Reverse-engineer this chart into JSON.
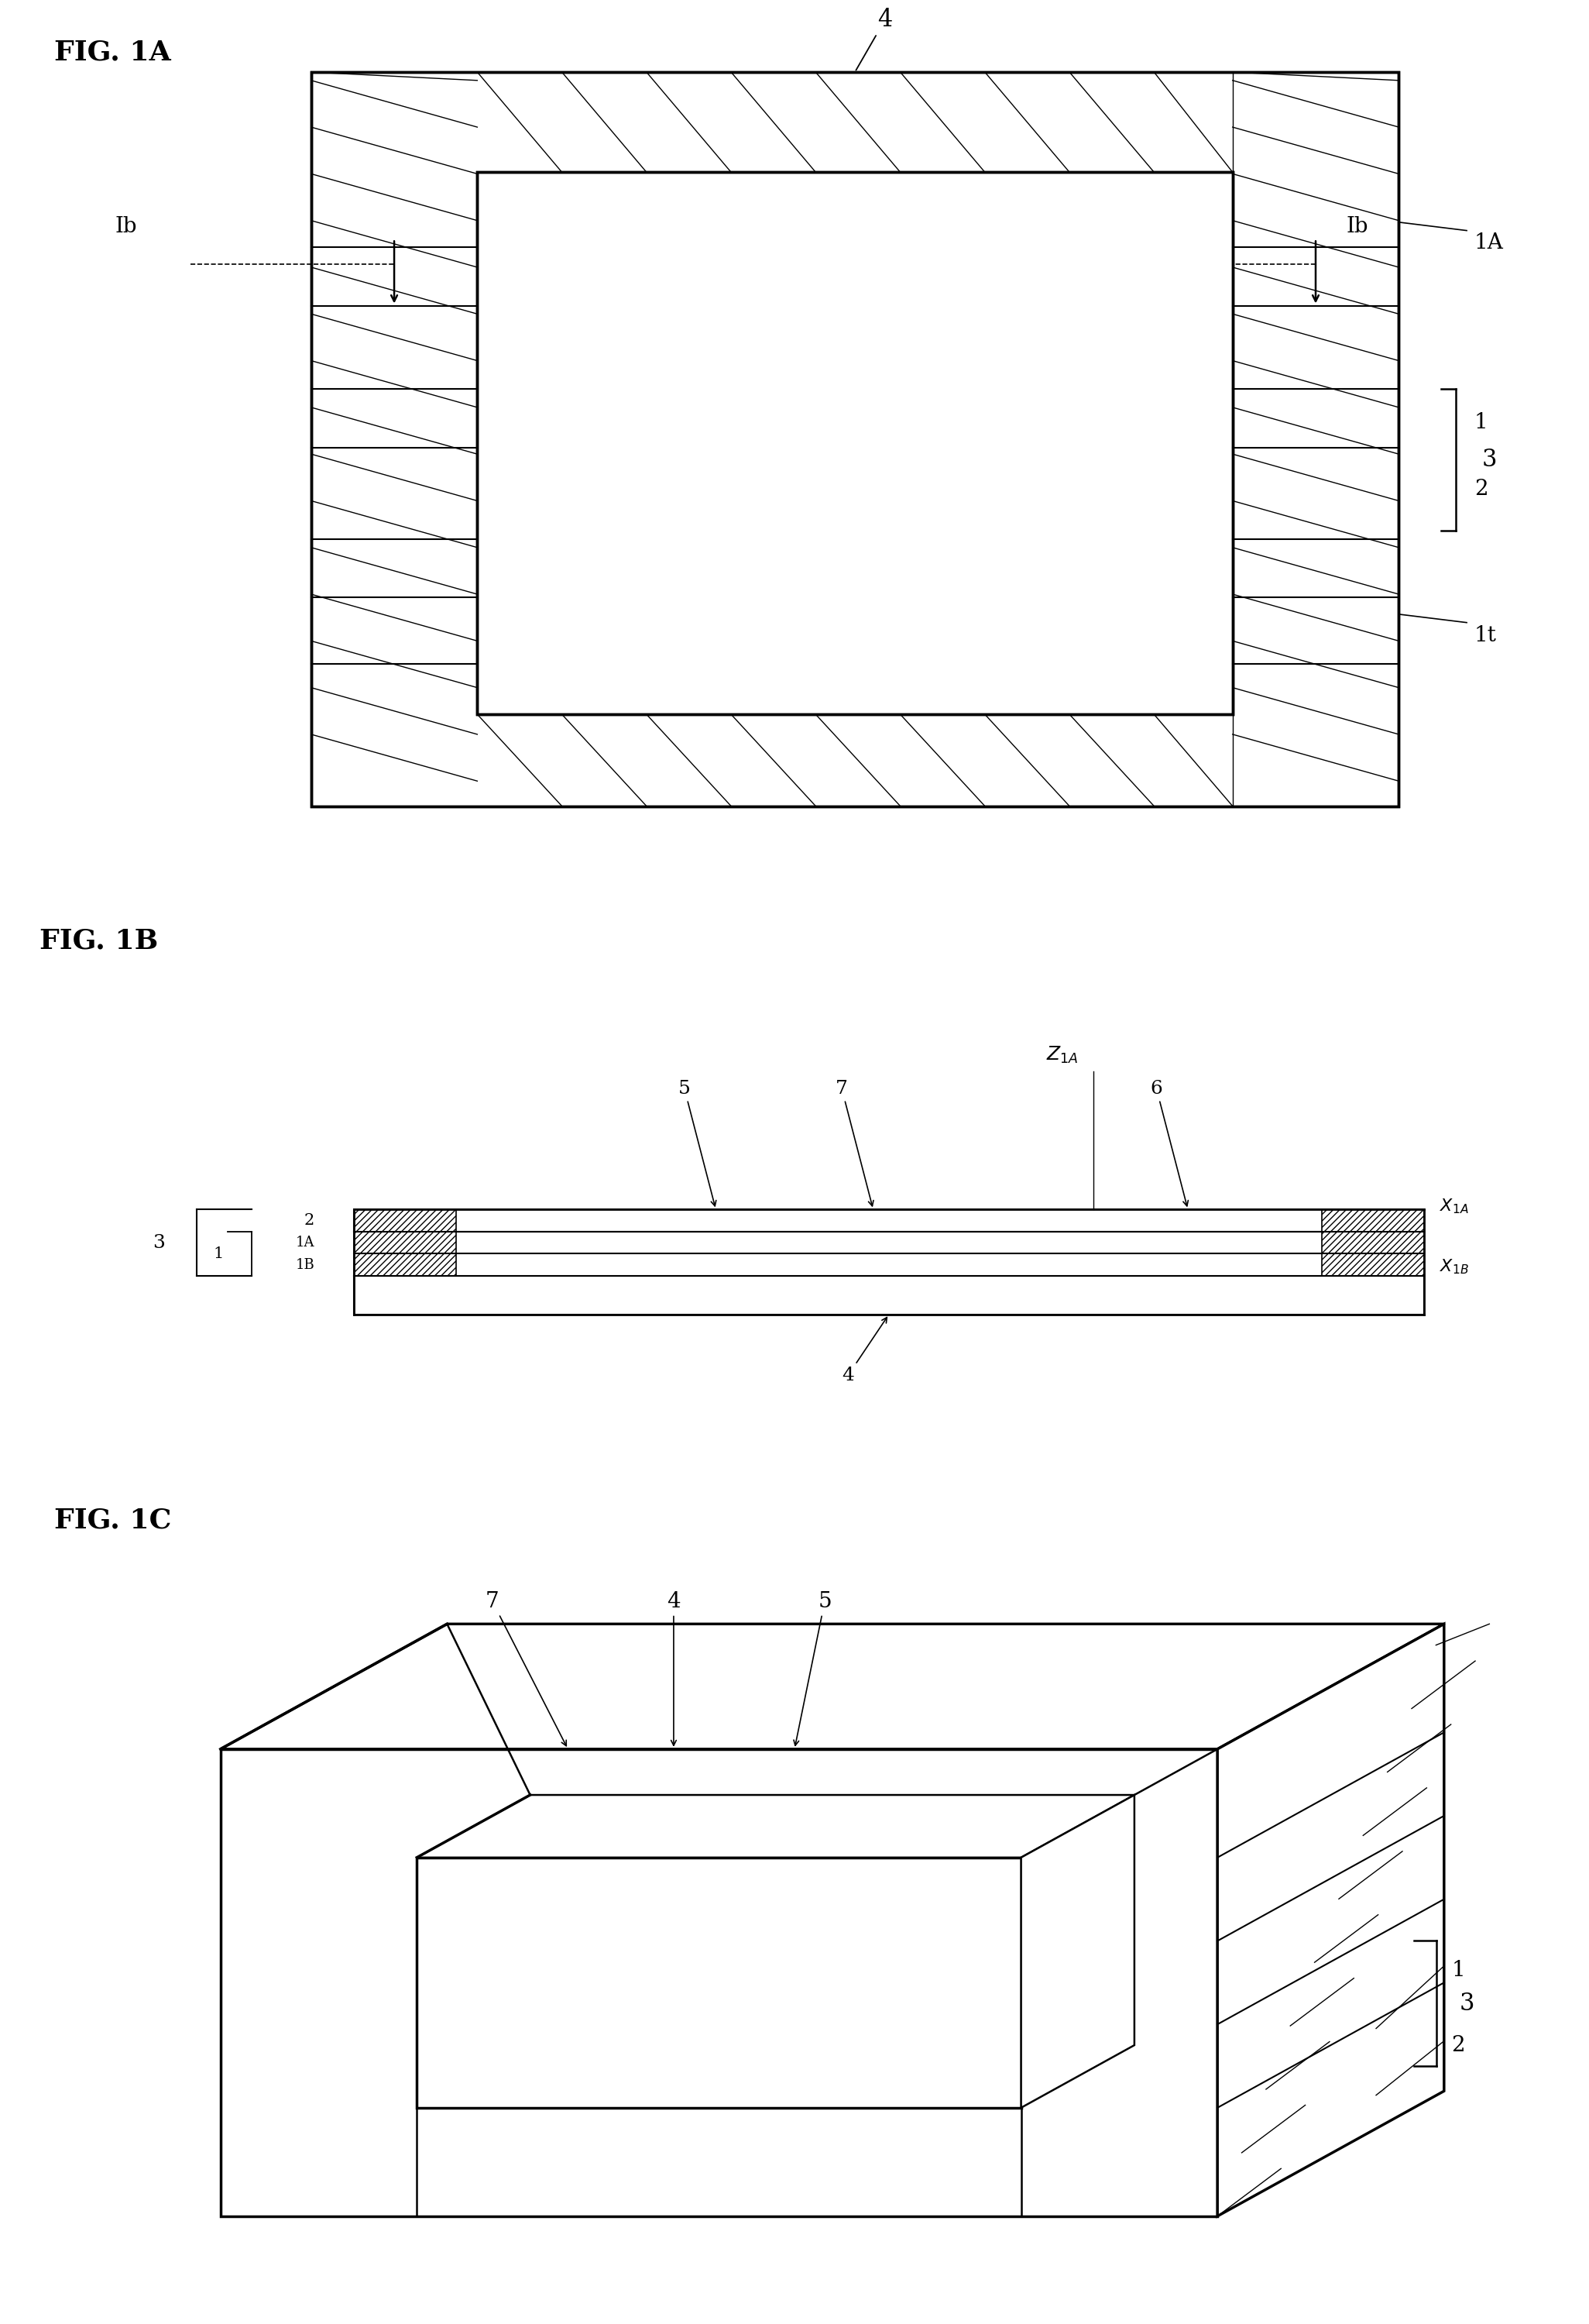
{
  "fig_width": 20.32,
  "fig_height": 30.33,
  "bg_color": "#ffffff",
  "line_color": "#000000",
  "fig1A_label": "FIG. 1A",
  "fig1B_label": "FIG. 1B",
  "fig1C_label": "FIG. 1C"
}
